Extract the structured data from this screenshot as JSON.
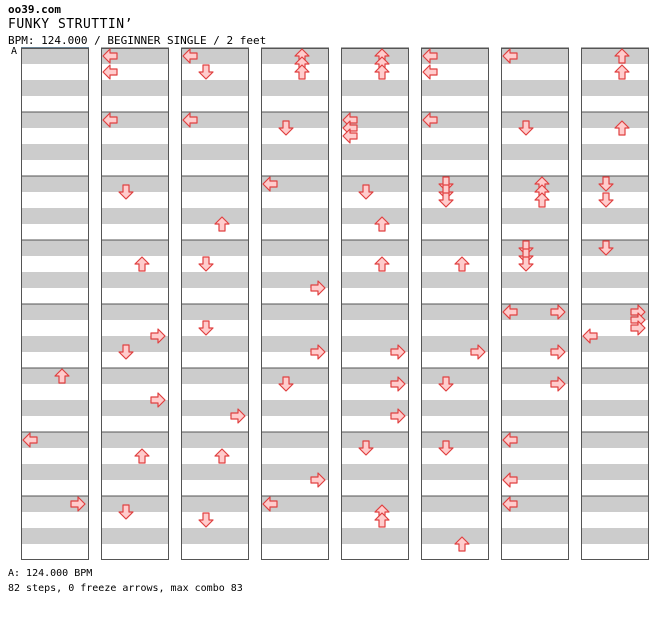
{
  "header": {
    "site": "oo39.com",
    "title": "FUNKY STRUTTIN’",
    "subtitle": "BPM: 124.000 / BEGINNER SINGLE / 2 feet",
    "marker": "A"
  },
  "footer": {
    "bpm_line": "A: 124.000 BPM",
    "stats_line": "82 steps, 0 freeze arrows, max combo 83"
  },
  "colors": {
    "stripe": "#cccccc",
    "background": "#ffffff",
    "arrow_fill": "#ffcccc",
    "arrow_stroke": "#e04040",
    "border": "#555555"
  },
  "chart_data": {
    "type": "step-chart",
    "columns": 8,
    "measures_per_column": 8,
    "lanes": [
      "left",
      "down",
      "up",
      "right"
    ],
    "arrows": [
      [
        1,
        0,
        0,
        "left"
      ],
      [
        1,
        0,
        2,
        "left"
      ],
      [
        1,
        1,
        0,
        "left"
      ],
      [
        1,
        2,
        1,
        "down"
      ],
      [
        1,
        3,
        2,
        "up"
      ],
      [
        1,
        4,
        3,
        "right"
      ],
      [
        1,
        4,
        5,
        "down"
      ],
      [
        1,
        5,
        3,
        "right"
      ],
      [
        1,
        6,
        2,
        "up"
      ],
      [
        1,
        7,
        1,
        "down"
      ],
      [
        2,
        0,
        0,
        "left"
      ],
      [
        2,
        0,
        2,
        "down"
      ],
      [
        2,
        1,
        0,
        "left"
      ],
      [
        2,
        2,
        5,
        "up"
      ],
      [
        2,
        3,
        2,
        "down"
      ],
      [
        2,
        4,
        2,
        "down"
      ],
      [
        2,
        5,
        5,
        "right"
      ],
      [
        2,
        6,
        2,
        "up"
      ],
      [
        2,
        7,
        2,
        "down"
      ],
      [
        3,
        0,
        0,
        "up"
      ],
      [
        3,
        0,
        1,
        "up"
      ],
      [
        3,
        0,
        2,
        "up"
      ],
      [
        3,
        1,
        1,
        "down"
      ],
      [
        3,
        2,
        0,
        "left"
      ],
      [
        3,
        3,
        5,
        "right"
      ],
      [
        3,
        4,
        5,
        "right"
      ],
      [
        3,
        5,
        1,
        "down"
      ],
      [
        3,
        6,
        5,
        "right"
      ],
      [
        3,
        7,
        0,
        "left"
      ],
      [
        4,
        0,
        0,
        "up"
      ],
      [
        4,
        0,
        1,
        "up"
      ],
      [
        4,
        0,
        2,
        "up"
      ],
      [
        4,
        1,
        0,
        "left"
      ],
      [
        4,
        1,
        1,
        "left"
      ],
      [
        4,
        1,
        2,
        "left"
      ],
      [
        4,
        2,
        1,
        "down"
      ],
      [
        4,
        2,
        5,
        "up"
      ],
      [
        4,
        3,
        2,
        "up"
      ],
      [
        4,
        4,
        5,
        "right"
      ],
      [
        4,
        4,
        9,
        "right"
      ],
      [
        4,
        5,
        5,
        "right"
      ],
      [
        4,
        6,
        1,
        "down"
      ],
      [
        4,
        6,
        9,
        "up"
      ],
      [
        4,
        7,
        2,
        "up"
      ],
      [
        5,
        0,
        0,
        "left"
      ],
      [
        5,
        0,
        2,
        "left"
      ],
      [
        5,
        1,
        0,
        "left"
      ],
      [
        5,
        2,
        0,
        "down"
      ],
      [
        5,
        2,
        1,
        "down"
      ],
      [
        5,
        2,
        2,
        "down"
      ],
      [
        5,
        3,
        2,
        "up"
      ],
      [
        5,
        4,
        5,
        "right"
      ],
      [
        5,
        5,
        1,
        "down"
      ],
      [
        5,
        6,
        1,
        "down"
      ],
      [
        5,
        7,
        5,
        "up"
      ],
      [
        6,
        0,
        0,
        "left"
      ],
      [
        6,
        1,
        1,
        "down"
      ],
      [
        6,
        2,
        0,
        "up"
      ],
      [
        6,
        2,
        1,
        "up"
      ],
      [
        6,
        2,
        2,
        "up"
      ],
      [
        6,
        3,
        0,
        "down"
      ],
      [
        6,
        3,
        1,
        "down"
      ],
      [
        6,
        3,
        2,
        "down"
      ],
      [
        6,
        4,
        0,
        "left"
      ],
      [
        6,
        4,
        0,
        "right"
      ],
      [
        6,
        4,
        5,
        "right"
      ],
      [
        6,
        5,
        1,
        "right"
      ],
      [
        6,
        6,
        0,
        "left"
      ],
      [
        6,
        6,
        5,
        "left"
      ],
      [
        6,
        7,
        0,
        "left"
      ],
      [
        7,
        0,
        0,
        "up"
      ],
      [
        7,
        0,
        2,
        "up"
      ],
      [
        7,
        1,
        1,
        "up"
      ],
      [
        7,
        2,
        0,
        "down"
      ],
      [
        7,
        2,
        2,
        "down"
      ],
      [
        7,
        3,
        0,
        "down"
      ],
      [
        7,
        4,
        0,
        "right"
      ],
      [
        7,
        4,
        1,
        "right"
      ],
      [
        7,
        4,
        2,
        "right"
      ],
      [
        7,
        4,
        3,
        "left"
      ]
    ],
    "first_column_arrows": [
      [
        0,
        5,
        0,
        "up"
      ],
      [
        0,
        6,
        0,
        "left"
      ],
      [
        0,
        7,
        0,
        "right"
      ]
    ]
  }
}
